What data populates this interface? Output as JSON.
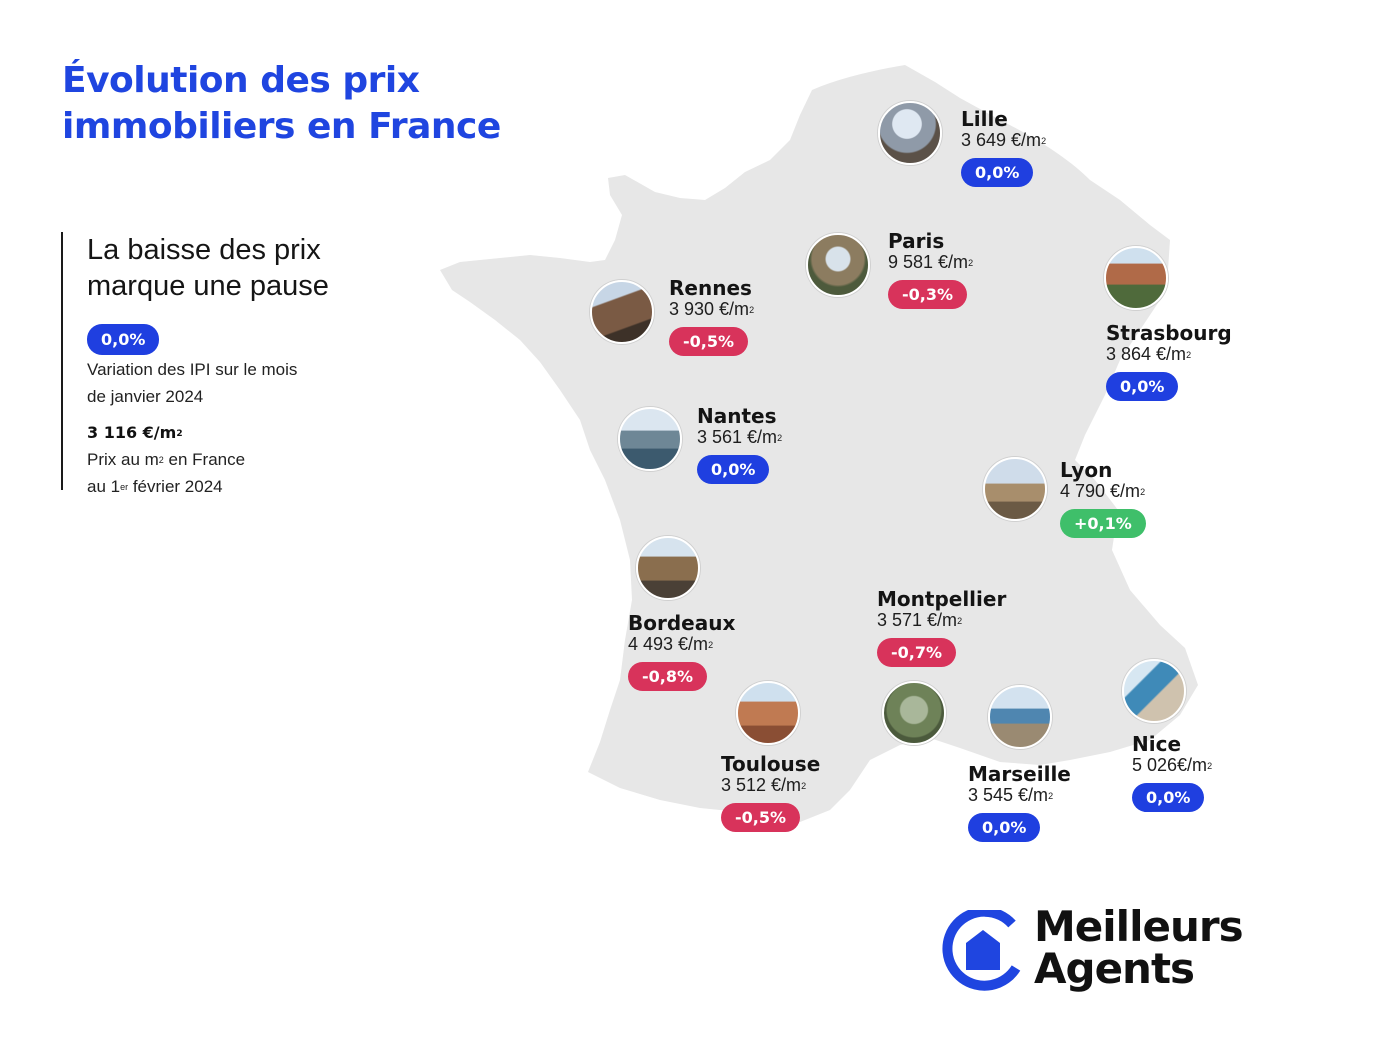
{
  "header": {
    "title_line1": "Évolution des prix",
    "title_line2": "immobiliers en France"
  },
  "summary": {
    "headline_line1": "La baisse des prix",
    "headline_line2": "marque une pause",
    "variation_badge": "0,0%",
    "variation_desc_line1": "Variation des IPI sur le mois",
    "variation_desc_line2": "de janvier 2024",
    "price_value": "3 116 €/m",
    "price_sup": "2",
    "price_desc_line1_pre": "Prix au m",
    "price_desc_line1_sup": "2",
    "price_desc_line1_post": " en France",
    "price_desc_line2_pre": "au 1",
    "price_desc_line2_sup": "er",
    "price_desc_line2_post": " février 2024"
  },
  "cities": [
    {
      "name": "Lille",
      "price": "3 649 €/m",
      "change": "0,0%",
      "trend": "neutral"
    },
    {
      "name": "Paris",
      "price": "9 581 €/m",
      "change": "-0,3%",
      "trend": "down"
    },
    {
      "name": "Rennes",
      "price": "3 930 €/m",
      "change": "-0,5%",
      "trend": "down"
    },
    {
      "name": "Strasbourg",
      "price": "3 864 €/m",
      "change": "0,0%",
      "trend": "neutral"
    },
    {
      "name": "Nantes",
      "price": "3 561 €/m",
      "change": "0,0%",
      "trend": "neutral"
    },
    {
      "name": "Lyon",
      "price": "4 790 €/m",
      "change": "+0,1%",
      "trend": "up"
    },
    {
      "name": "Bordeaux",
      "price": "4 493 €/m",
      "change": "-0,8%",
      "trend": "down"
    },
    {
      "name": "Montpellier",
      "price": "3 571 €/m",
      "change": "-0,7%",
      "trend": "down"
    },
    {
      "name": "Toulouse",
      "price": "3 512 €/m",
      "change": "-0,5%",
      "trend": "down"
    },
    {
      "name": "Marseille",
      "price": "3 545 €/m",
      "change": "0,0%",
      "trend": "neutral"
    },
    {
      "name": "Nice",
      "price": "5 026€/m",
      "change": "0,0%",
      "trend": "neutral"
    }
  ],
  "unit_sup": "2",
  "logo": {
    "line1": "Meilleurs",
    "line2": "Agents"
  },
  "colors": {
    "brand_blue": "#1f45e0",
    "neutral_badge": "#1f3fe0",
    "down_badge": "#d8335b",
    "up_badge": "#3fbf6a",
    "map_fill": "#e7e7e7"
  }
}
